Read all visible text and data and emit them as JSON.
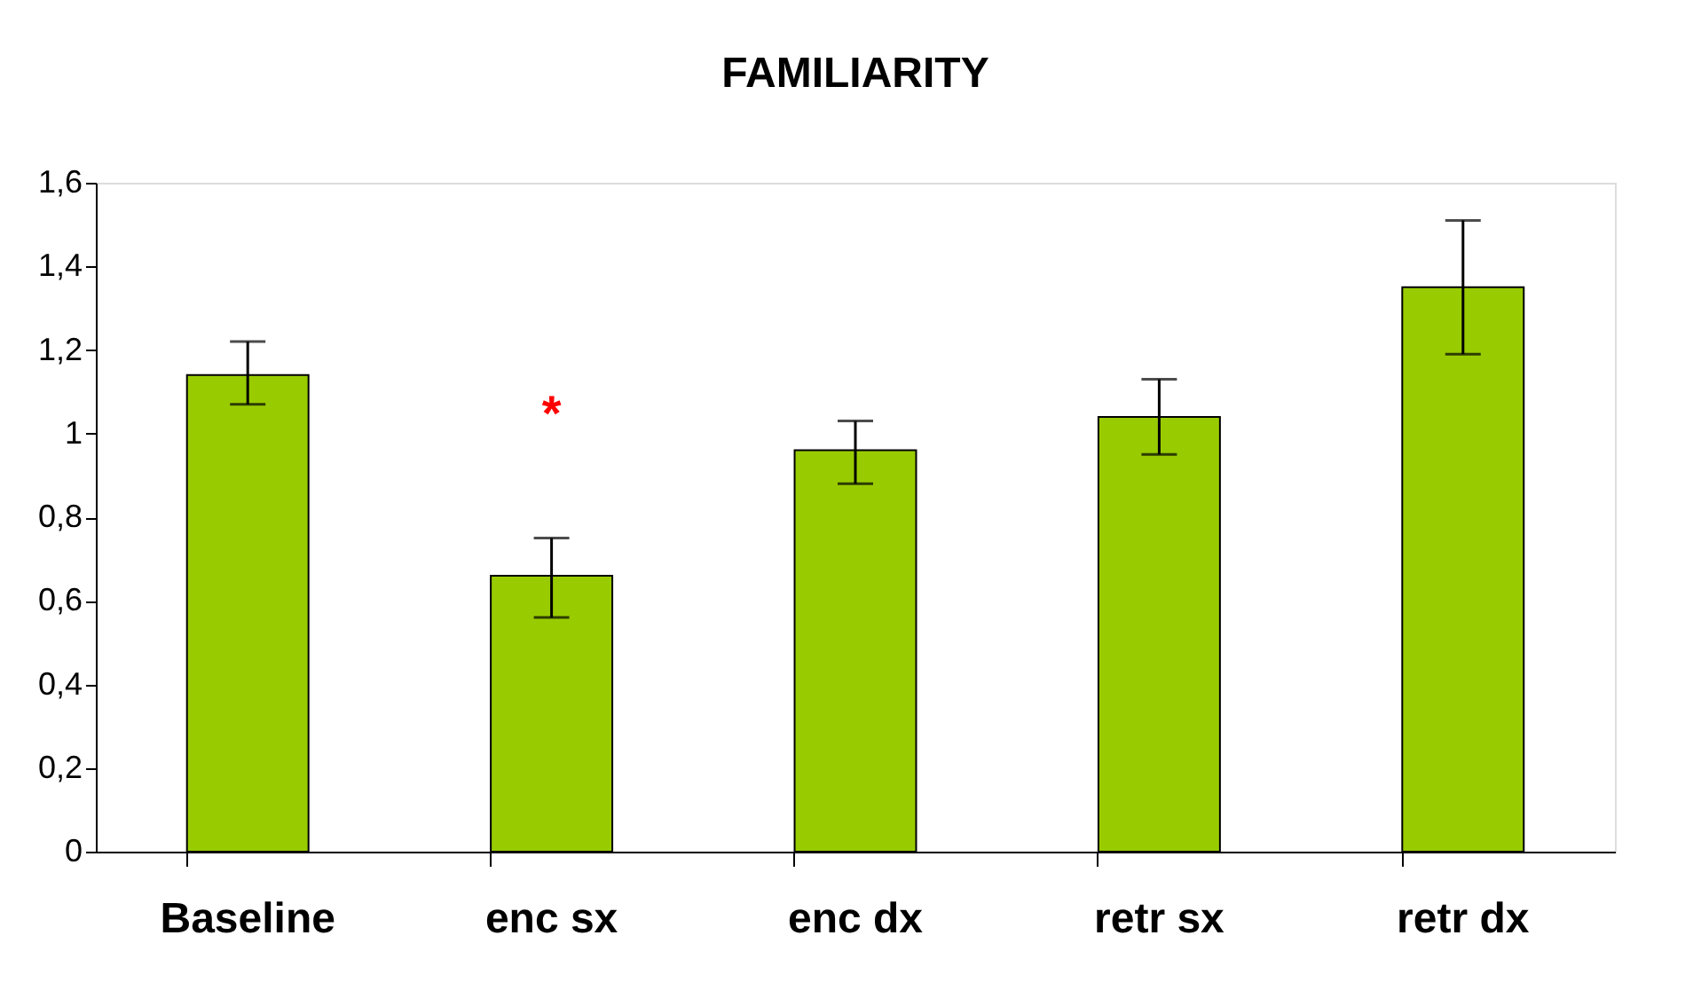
{
  "chart_data": {
    "type": "bar",
    "title": "FAMILIARITY",
    "categories": [
      "Baseline",
      "enc sx",
      "enc dx",
      "retr sx",
      "retr dx"
    ],
    "values": [
      1.14,
      0.66,
      0.96,
      1.04,
      1.35
    ],
    "errors": [
      [
        1.07,
        1.22
      ],
      [
        0.56,
        0.75
      ],
      [
        0.88,
        1.03
      ],
      [
        0.95,
        1.13
      ],
      [
        1.19,
        1.51
      ]
    ],
    "color": "#99cc00",
    "ylim": [
      0,
      1.6
    ],
    "yticks": [
      0,
      {
        "value": 0.2,
        "label": "0,2"
      },
      {
        "value": 0.4,
        "label": "0,4"
      },
      {
        "value": 0.6,
        "label": "0,6"
      },
      {
        "value": 0.8,
        "label": "0,8"
      },
      1,
      {
        "value": 1.2,
        "label": "1,2"
      },
      {
        "value": 1.4,
        "label": "1,4"
      },
      {
        "value": 1.6,
        "label": "1,6"
      }
    ],
    "annotations": [
      {
        "text": "*",
        "x": "enc sx",
        "y": 0.66
      }
    ],
    "grid": false
  }
}
